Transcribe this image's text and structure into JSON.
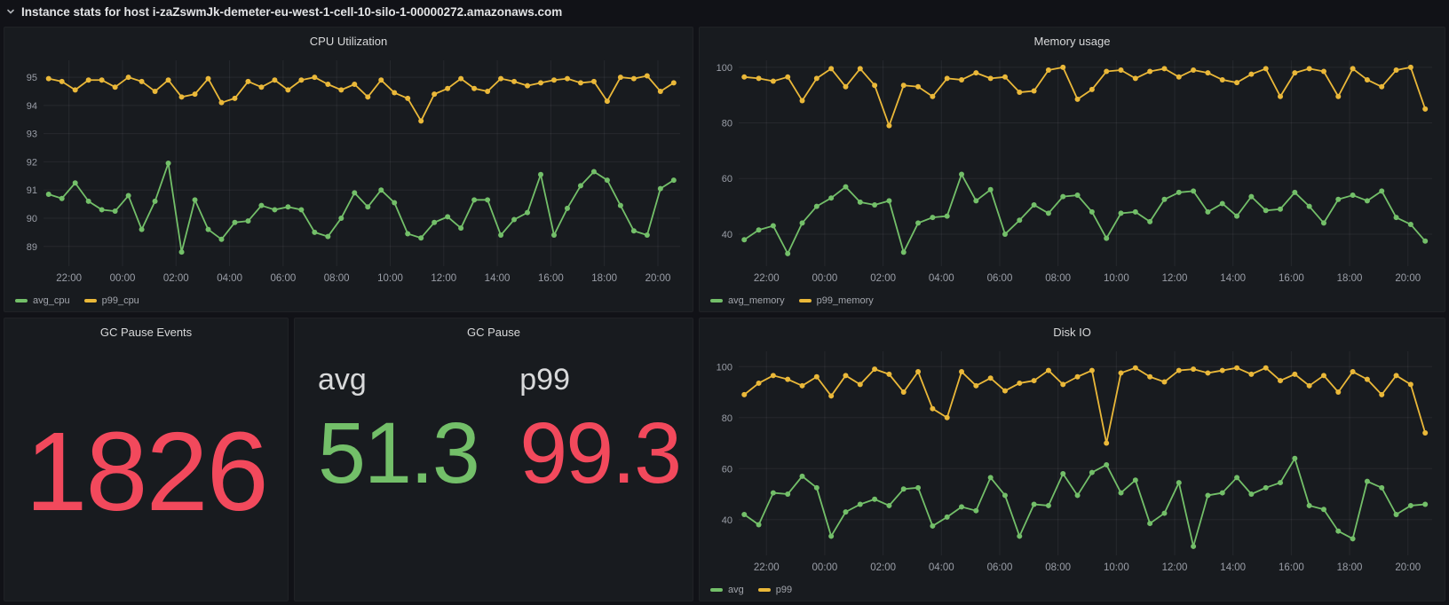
{
  "row": {
    "title": "Instance stats for host i-zaZswmJk-demeter-eu-west-1-cell-10-silo-1-00000272.amazonaws.com"
  },
  "chart_data": [
    {
      "id": "cpu-utilization",
      "type": "line",
      "title": "CPU Utilization",
      "x": [
        "22:00",
        "00:00",
        "02:00",
        "04:00",
        "06:00",
        "08:00",
        "10:00",
        "12:00",
        "14:00",
        "16:00",
        "18:00",
        "20:00"
      ],
      "y_ticks": [
        89,
        90,
        91,
        92,
        93,
        94,
        95
      ],
      "ylim": [
        88.3,
        95.6
      ],
      "grid": true,
      "legend_position": "bottom-left",
      "series": [
        {
          "name": "avg_cpu",
          "color": "#73BF69",
          "values": [
            90.85,
            90.7,
            91.25,
            90.6,
            90.3,
            90.25,
            90.8,
            89.6,
            90.6,
            91.95,
            88.8,
            90.65,
            89.6,
            89.25,
            89.85,
            89.9,
            90.45,
            90.3,
            90.4,
            90.3,
            89.5,
            89.35,
            90.0,
            90.9,
            90.4,
            91.0,
            90.55,
            89.45,
            89.3,
            89.85,
            90.05,
            89.65,
            90.65,
            90.65,
            89.4,
            89.95,
            90.2,
            91.55,
            89.4,
            90.35,
            91.15,
            91.65,
            91.35,
            90.45,
            89.55,
            89.4,
            91.05,
            91.35
          ]
        },
        {
          "name": "p99_cpu",
          "color": "#EAB839",
          "values": [
            94.95,
            94.85,
            94.55,
            94.9,
            94.9,
            94.65,
            95.0,
            94.85,
            94.5,
            94.9,
            94.3,
            94.4,
            94.95,
            94.1,
            94.25,
            94.85,
            94.65,
            94.9,
            94.55,
            94.9,
            95.0,
            94.75,
            94.55,
            94.75,
            94.3,
            94.9,
            94.45,
            94.25,
            93.45,
            94.4,
            94.6,
            94.95,
            94.6,
            94.5,
            94.95,
            94.85,
            94.7,
            94.8,
            94.9,
            94.95,
            94.8,
            94.85,
            94.15,
            95.0,
            94.95,
            95.05,
            94.5,
            94.8
          ]
        }
      ]
    },
    {
      "id": "memory-usage",
      "type": "line",
      "title": "Memory usage",
      "x": [
        "22:00",
        "00:00",
        "02:00",
        "04:00",
        "06:00",
        "08:00",
        "10:00",
        "12:00",
        "14:00",
        "16:00",
        "18:00",
        "20:00"
      ],
      "y_ticks": [
        40,
        60,
        80,
        100
      ],
      "ylim": [
        28.5,
        102.5
      ],
      "grid": true,
      "legend_position": "bottom-left",
      "series": [
        {
          "name": "avg_memory",
          "color": "#73BF69",
          "values": [
            38,
            41.5,
            43,
            33,
            44,
            50,
            53,
            57,
            51.5,
            50.5,
            52,
            33.5,
            44,
            46,
            46.5,
            61.5,
            52,
            56,
            40,
            45,
            50.5,
            47.5,
            53.5,
            54,
            48,
            38.5,
            47.5,
            48,
            44.5,
            52.5,
            55,
            55.5,
            48,
            51,
            46.5,
            53.5,
            48.5,
            49,
            55,
            50,
            44,
            52.5,
            54,
            52,
            55.5,
            46,
            43.5,
            37.5
          ]
        },
        {
          "name": "p99_memory",
          "color": "#EAB839",
          "values": [
            96.5,
            96,
            95,
            96.5,
            88,
            96,
            99.5,
            93,
            99.5,
            93.5,
            79,
            93.5,
            93,
            89.5,
            96,
            95.5,
            98,
            96,
            96.5,
            91,
            91.5,
            99,
            100,
            88.5,
            92,
            98.5,
            99,
            96,
            98.5,
            99.5,
            96.5,
            99,
            98,
            95.5,
            94.5,
            97.5,
            99.5,
            89.5,
            98,
            99.5,
            98.5,
            89.5,
            99.5,
            95.5,
            93,
            99,
            100,
            85
          ]
        }
      ]
    },
    {
      "id": "disk-io",
      "type": "line",
      "title": "Disk IO",
      "x": [
        "22:00",
        "00:00",
        "02:00",
        "04:00",
        "06:00",
        "08:00",
        "10:00",
        "12:00",
        "14:00",
        "16:00",
        "18:00",
        "20:00"
      ],
      "y_ticks": [
        40,
        60,
        80,
        100
      ],
      "ylim": [
        26,
        106
      ],
      "grid": true,
      "legend_position": "bottom-left",
      "series": [
        {
          "name": "avg",
          "color": "#73BF69",
          "values": [
            42,
            38,
            50.5,
            50,
            57,
            52.5,
            33.5,
            43,
            46,
            48,
            45.5,
            52,
            52.5,
            37.5,
            41,
            45,
            43.5,
            56.5,
            49.5,
            33.5,
            46,
            45.5,
            58,
            49.5,
            58.5,
            61.5,
            50.5,
            55.5,
            38.5,
            42.5,
            54.5,
            29.5,
            49.5,
            50.5,
            56.5,
            50,
            52.5,
            54.5,
            64,
            45.5,
            44,
            35.5,
            32.5,
            55,
            52.5,
            42,
            45.5,
            46
          ]
        },
        {
          "name": "p99",
          "color": "#EAB839",
          "values": [
            89,
            93.5,
            96.5,
            95,
            92.5,
            96,
            88.5,
            96.5,
            93,
            99,
            97,
            90,
            98,
            83.5,
            80,
            98,
            92.5,
            95.5,
            90.5,
            93.5,
            94.5,
            98.5,
            93,
            96,
            98.5,
            70,
            97.5,
            99.5,
            96,
            94,
            98.5,
            99,
            97.5,
            98.5,
            99.5,
            97,
            99.5,
            94.5,
            97,
            92.5,
            96.5,
            90,
            98,
            95,
            89,
            96.5,
            93,
            74
          ]
        }
      ]
    },
    {
      "id": "gc-pause-events",
      "type": "stat",
      "title": "GC Pause Events",
      "value": 1826,
      "color": "#F2495C"
    },
    {
      "id": "gc-pause",
      "type": "stat",
      "title": "GC Pause",
      "stats": [
        {
          "label": "avg",
          "value": 51.3,
          "color": "#73BF69"
        },
        {
          "label": "p99",
          "value": 99.3,
          "color": "#F2495C"
        }
      ]
    }
  ],
  "style": {
    "axis_text_color": "#9a9ea7",
    "grid_color": "rgba(204,204,220,0.08)"
  }
}
